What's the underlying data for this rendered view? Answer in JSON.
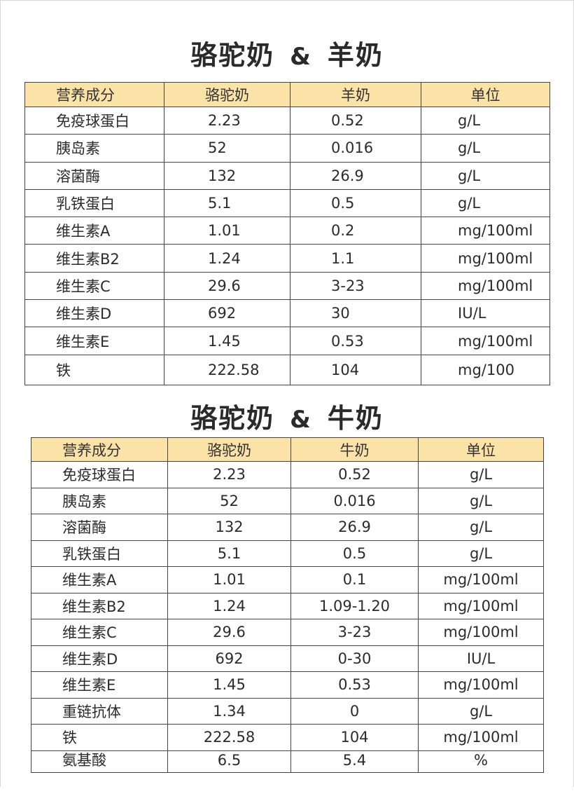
{
  "section1": {
    "title_left": "骆驼奶",
    "title_amp": "&",
    "title_right": "羊奶",
    "headers": [
      "营养成分",
      "骆驼奶",
      "羊奶",
      "单位"
    ],
    "rows": [
      [
        "免疫球蛋白",
        "2.23",
        "0.52",
        "g/L"
      ],
      [
        "胰岛素",
        "52",
        "0.016",
        "g/L"
      ],
      [
        "溶菌酶",
        "132",
        "26.9",
        "g/L"
      ],
      [
        "乳铁蛋白",
        "5.1",
        "0.5",
        "g/L"
      ],
      [
        "维生素A",
        "1.01",
        "0.2",
        "mg/100ml"
      ],
      [
        "维生素B2",
        "1.24",
        "1.1",
        "mg/100ml"
      ],
      [
        "维生素C",
        "29.6",
        "3-23",
        "mg/100ml"
      ],
      [
        "维生素D",
        "692",
        "30",
        "IU/L"
      ],
      [
        "维生素E",
        "1.45",
        "0.53",
        "mg/100ml"
      ],
      [
        "铁",
        "222.58",
        "104",
        "mg/100"
      ]
    ]
  },
  "section2": {
    "title_left": "骆驼奶",
    "title_amp": "&",
    "title_right": "牛奶",
    "headers": [
      "营养成分",
      "骆驼奶",
      "牛奶",
      "单位"
    ],
    "rows": [
      [
        "免疫球蛋白",
        "2.23",
        "0.52",
        "g/L"
      ],
      [
        "胰岛素",
        "52",
        "0.016",
        "g/L"
      ],
      [
        "溶菌酶",
        "132",
        "26.9",
        "g/L"
      ],
      [
        "乳铁蛋白",
        "5.1",
        "0.5",
        "g/L"
      ],
      [
        "维生素A",
        "1.01",
        "0.1",
        "mg/100ml"
      ],
      [
        "维生素B2",
        "1.24",
        "1.09-1.20",
        "mg/100ml"
      ],
      [
        "维生素C",
        "29.6",
        "3-23",
        "mg/100ml"
      ],
      [
        "维生素D",
        "692",
        "0-30",
        "IU/L"
      ],
      [
        "维生素E",
        "1.45",
        "0.53",
        "mg/100ml"
      ],
      [
        "重链抗体",
        "1.34",
        "0",
        "g/L"
      ],
      [
        "铁",
        "222.58",
        "104",
        "mg/100ml"
      ],
      [
        "氨基酸",
        "6.5",
        "5.4",
        "%"
      ]
    ]
  },
  "colors": {
    "header_bg": "#fbe3a8",
    "border": "#444444",
    "text": "#222222"
  }
}
